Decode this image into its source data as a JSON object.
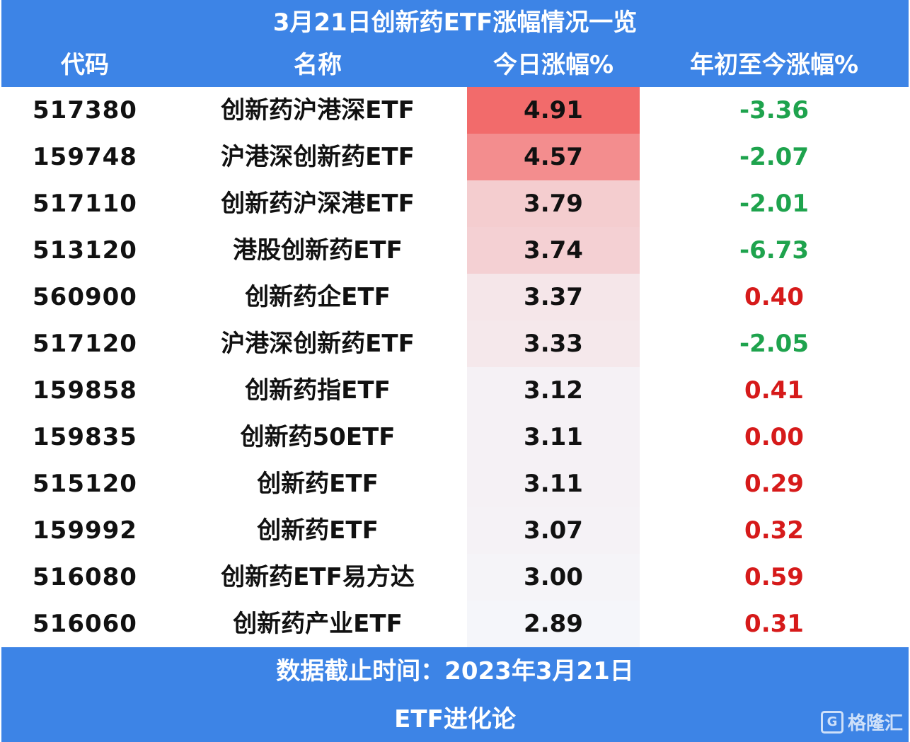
{
  "header": {
    "title": "3月21日创新药ETF涨幅情况一览",
    "columns": [
      "代码",
      "名称",
      "今日涨幅%",
      "年初至今涨幅%"
    ]
  },
  "chart_data": {
    "type": "table",
    "title": "3月21日创新药ETF涨幅情况一览",
    "columns": [
      "代码",
      "名称",
      "今日涨幅%",
      "年初至今涨幅%"
    ],
    "rows": [
      {
        "code": "517380",
        "name": "创新药沪港深ETF",
        "today": "4.91",
        "ytd": "-3.36"
      },
      {
        "code": "159748",
        "name": "沪港深创新药ETF",
        "today": "4.57",
        "ytd": "-2.07"
      },
      {
        "code": "517110",
        "name": "创新药沪深港ETF",
        "today": "3.79",
        "ytd": "-2.01"
      },
      {
        "code": "513120",
        "name": "港股创新药ETF",
        "today": "3.74",
        "ytd": "-6.73"
      },
      {
        "code": "560900",
        "name": "创新药企ETF",
        "today": "3.37",
        "ytd": "0.40"
      },
      {
        "code": "517120",
        "name": "沪港深创新药ETF",
        "today": "3.33",
        "ytd": "-2.05"
      },
      {
        "code": "159858",
        "name": "创新药指ETF",
        "today": "3.12",
        "ytd": "0.41"
      },
      {
        "code": "159835",
        "name": "创新药50ETF",
        "today": "3.11",
        "ytd": "0.00"
      },
      {
        "code": "515120",
        "name": "创新药ETF",
        "today": "3.11",
        "ytd": "0.29"
      },
      {
        "code": "159992",
        "name": "创新药ETF",
        "today": "3.07",
        "ytd": "0.32"
      },
      {
        "code": "516080",
        "name": "创新药ETF易方达",
        "today": "3.00",
        "ytd": "0.59"
      },
      {
        "code": "516060",
        "name": "创新药产业ETF",
        "today": "2.89",
        "ytd": "0.31"
      }
    ]
  },
  "colors": {
    "header_bg": "#3d84e6",
    "heat_high": "#f26b6b",
    "heat_low": "#f5f6fa",
    "positive": "#d61a1a",
    "negative": "#1ea34d"
  },
  "footer": {
    "date_text": "数据截止时间：2023年3月21日",
    "brand": "ETF进化论",
    "watermark_text": "格隆汇",
    "watermark_icon": "G"
  }
}
